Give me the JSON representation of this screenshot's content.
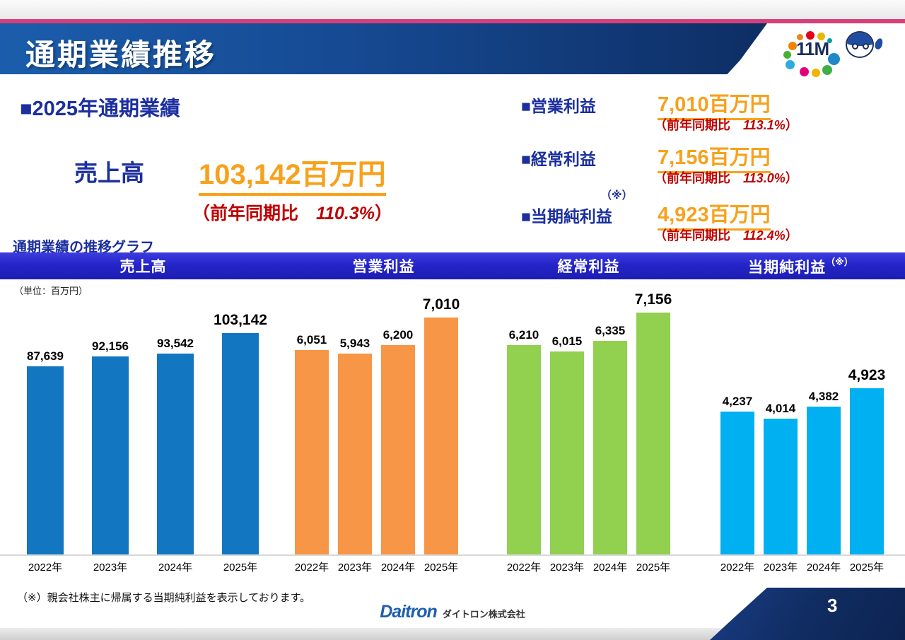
{
  "slide": {
    "title": "通期業績推移",
    "page_number": "3",
    "footnote": "（※）親会社株主に帰属する当期純利益を表示しております。",
    "brand": {
      "logo_text": "11M",
      "footer_brand": "Daitron",
      "footer_company": "ダイトロン株式会社"
    }
  },
  "summary": {
    "heading": "■2025年通期業績",
    "revenue": {
      "label": "売上高",
      "value": "103,142百万円",
      "yoy_prefix": "（前年同期比　",
      "yoy_pct": "110.3%",
      "yoy_suffix": "）"
    },
    "items": [
      {
        "label": "■営業利益",
        "sup": "",
        "value": "7,010百万円",
        "yoy_prefix": "（前年同期比　",
        "yoy_pct": "113.1%",
        "yoy_suffix": "）"
      },
      {
        "label": "■経常利益",
        "sup": "",
        "value": "7,156百万円",
        "yoy_prefix": "（前年同期比　",
        "yoy_pct": "113.0%",
        "yoy_suffix": "）"
      },
      {
        "label": "■当期純利益",
        "sup": "（※）",
        "value": "4,923百万円",
        "yoy_prefix": "（前年同期比　",
        "yoy_pct": "112.4%",
        "yoy_suffix": "）"
      }
    ]
  },
  "graph_section": {
    "label": "通期業績の推移グラフ",
    "unit": "（単位：百万円）"
  },
  "chart_data": [
    {
      "type": "bar",
      "title": "売上高",
      "title_sup": "",
      "categories": [
        "2022年",
        "2023年",
        "2024年",
        "2025年"
      ],
      "values": [
        87639,
        92156,
        93542,
        103142
      ],
      "value_labels": [
        "87,639",
        "92,156",
        "93,542",
        "103,142"
      ],
      "bar_color": "#1376C0",
      "ylim": [
        0,
        118000
      ],
      "unit": "百万円",
      "grid": false,
      "legend": "none"
    },
    {
      "type": "bar",
      "title": "営業利益",
      "title_sup": "",
      "categories": [
        "2022年",
        "2023年",
        "2024年",
        "2025年"
      ],
      "values": [
        6051,
        5943,
        6200,
        7010
      ],
      "value_labels": [
        "6,051",
        "5,943",
        "6,200",
        "7,010"
      ],
      "bar_color": "#F79646",
      "ylim": [
        0,
        7500
      ],
      "unit": "百万円",
      "grid": false,
      "legend": "none"
    },
    {
      "type": "bar",
      "title": "経常利益",
      "title_sup": "",
      "categories": [
        "2022年",
        "2023年",
        "2024年",
        "2025年"
      ],
      "values": [
        6210,
        6015,
        6335,
        7156
      ],
      "value_labels": [
        "6,210",
        "6,015",
        "6,335",
        "7,156"
      ],
      "bar_color": "#92D050",
      "ylim": [
        0,
        7500
      ],
      "unit": "百万円",
      "grid": false,
      "legend": "none"
    },
    {
      "type": "bar",
      "title": "当期純利益",
      "title_sup": "（※）",
      "categories": [
        "2022年",
        "2023年",
        "2024年",
        "2025年"
      ],
      "values": [
        4237,
        4014,
        4382,
        4923
      ],
      "value_labels": [
        "4,237",
        "4,014",
        "4,382",
        "4,923"
      ],
      "bar_color": "#00B0F0",
      "ylim": [
        0,
        7500
      ],
      "unit": "百万円",
      "grid": false,
      "legend": "none"
    }
  ],
  "colors": {
    "accent_blue_text": "#1C2F9F",
    "accent_orange_value": "#F7A11C",
    "accent_red": "#C00000",
    "chart_header_bar": "#2525C9",
    "header_band": "#0E2E64",
    "pink_line": "#D6407A"
  }
}
